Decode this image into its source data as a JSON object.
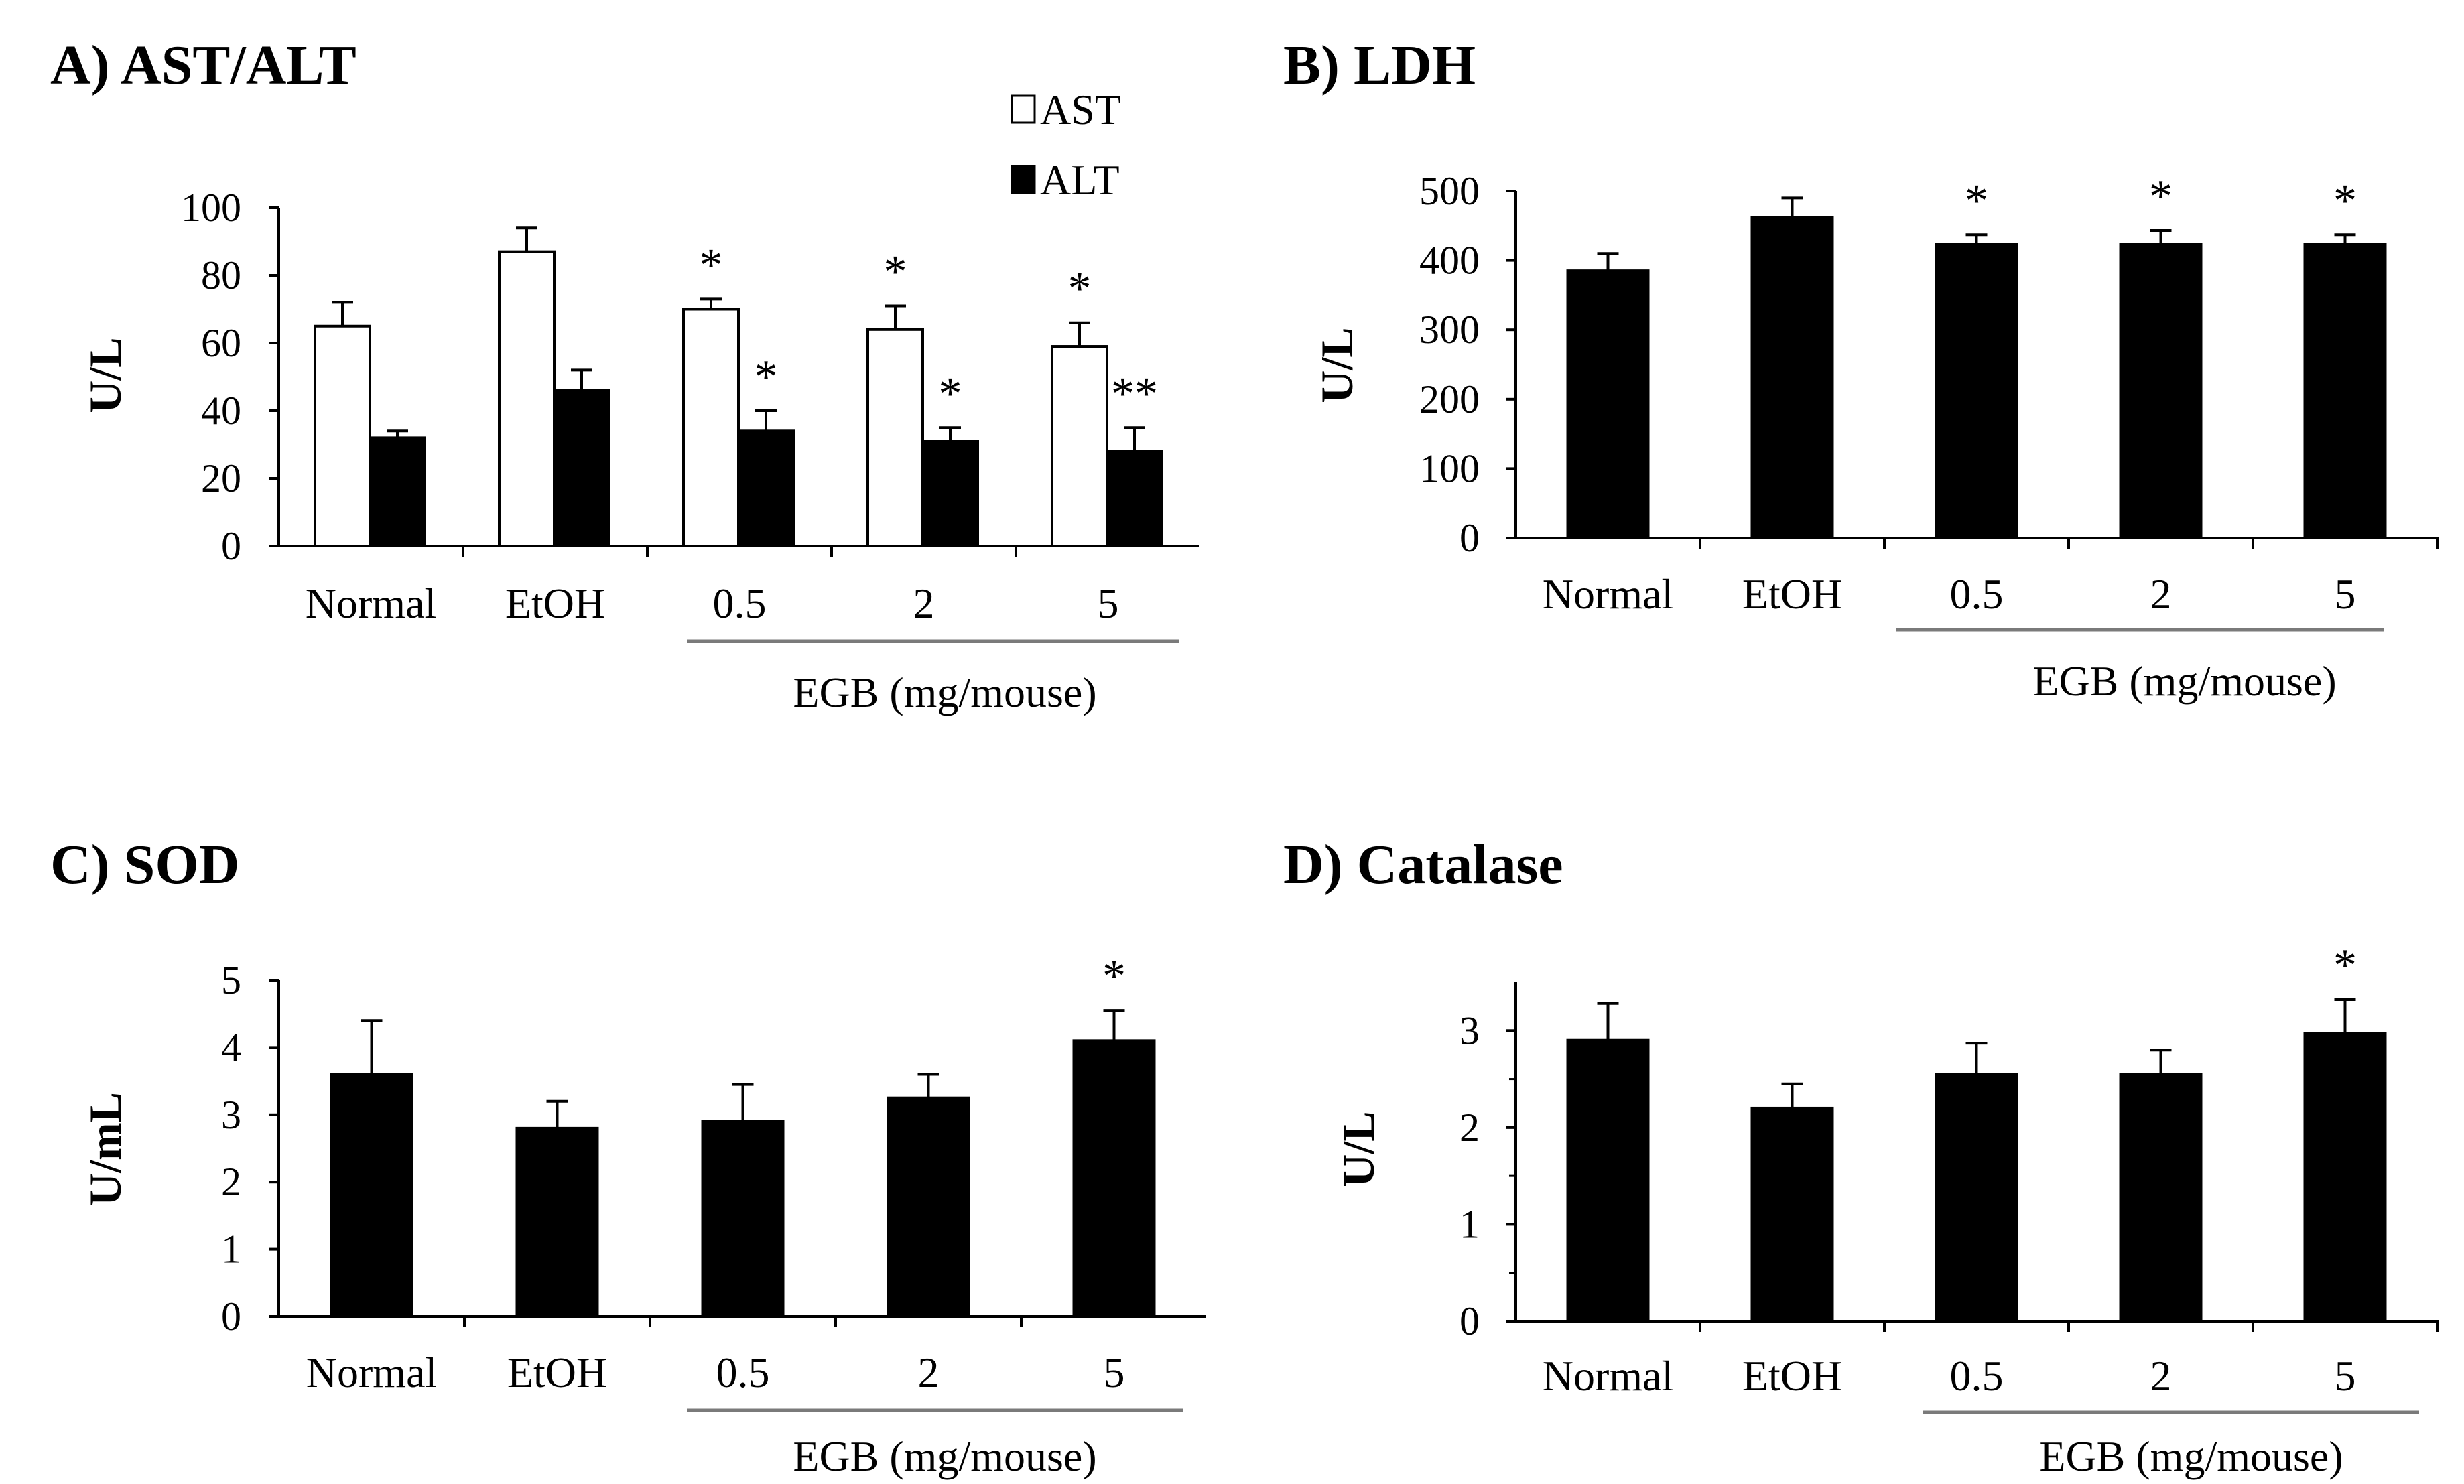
{
  "chart_data": [
    {
      "type": "bar",
      "title": "A) AST/ALT",
      "ylabel": "U/L",
      "xlabel": "",
      "ylim": [
        0,
        100
      ],
      "yticks": [
        0,
        20,
        40,
        60,
        80,
        100
      ],
      "categories": [
        "Normal",
        "EtOH",
        "0.5",
        "2",
        "5"
      ],
      "group_label": "EGB (mg/mouse)",
      "legend": {
        "position": "top-right",
        "entries": [
          "AST",
          "ALT"
        ]
      },
      "series": [
        {
          "name": "AST",
          "color": "#ffffff",
          "values": [
            65,
            87,
            70,
            64,
            59
          ],
          "errors": [
            7,
            7,
            3,
            7,
            7
          ],
          "annotations": [
            "",
            "",
            "*",
            "*",
            "*"
          ]
        },
        {
          "name": "ALT",
          "color": "#000000",
          "values": [
            32,
            46,
            34,
            31,
            28
          ],
          "errors": [
            2,
            6,
            6,
            4,
            7
          ],
          "annotations": [
            "",
            "",
            "*",
            "*",
            "**"
          ]
        }
      ]
    },
    {
      "type": "bar",
      "title": "B) LDH",
      "ylabel": "U/L",
      "xlabel": "",
      "ylim": [
        0,
        500
      ],
      "yticks": [
        0,
        100,
        200,
        300,
        400,
        500
      ],
      "categories": [
        "Normal",
        "EtOH",
        "0.5",
        "2",
        "5"
      ],
      "group_label": "EGB (mg/mouse)",
      "series": [
        {
          "name": "LDH",
          "color": "#000000",
          "values": [
            385,
            462,
            423,
            423,
            423
          ],
          "errors": [
            25,
            28,
            14,
            20,
            14
          ],
          "annotations": [
            "",
            "",
            "*",
            "*",
            "*"
          ]
        }
      ]
    },
    {
      "type": "bar",
      "title": "C) SOD",
      "ylabel": "U/mL",
      "xlabel": "",
      "ylim": [
        0,
        5
      ],
      "yticks": [
        0,
        1,
        2,
        3,
        4,
        5
      ],
      "categories": [
        "Normal",
        "EtOH",
        "0.5",
        "2",
        "5"
      ],
      "group_label": "EGB (mg/mouse)",
      "series": [
        {
          "name": "SOD",
          "color": "#000000",
          "values": [
            3.6,
            2.8,
            2.9,
            3.25,
            4.1
          ],
          "errors": [
            0.8,
            0.4,
            0.55,
            0.35,
            0.45
          ],
          "annotations": [
            "",
            "",
            "",
            "",
            "*"
          ]
        }
      ]
    },
    {
      "type": "bar",
      "title": "D) Catalase",
      "ylabel": "U/L",
      "xlabel": "",
      "ylim": [
        0,
        3.5
      ],
      "yticks": [
        0,
        1,
        2,
        3
      ],
      "categories": [
        "Normal",
        "EtOH",
        "0.5",
        "2",
        "5"
      ],
      "group_label": "EGB (mg/mouse)",
      "series": [
        {
          "name": "Catalase",
          "color": "#000000",
          "values": [
            2.9,
            2.2,
            2.55,
            2.55,
            2.97
          ],
          "errors": [
            0.38,
            0.25,
            0.32,
            0.25,
            0.35
          ],
          "annotations": [
            "",
            "",
            "",
            "",
            "*"
          ]
        }
      ]
    }
  ]
}
